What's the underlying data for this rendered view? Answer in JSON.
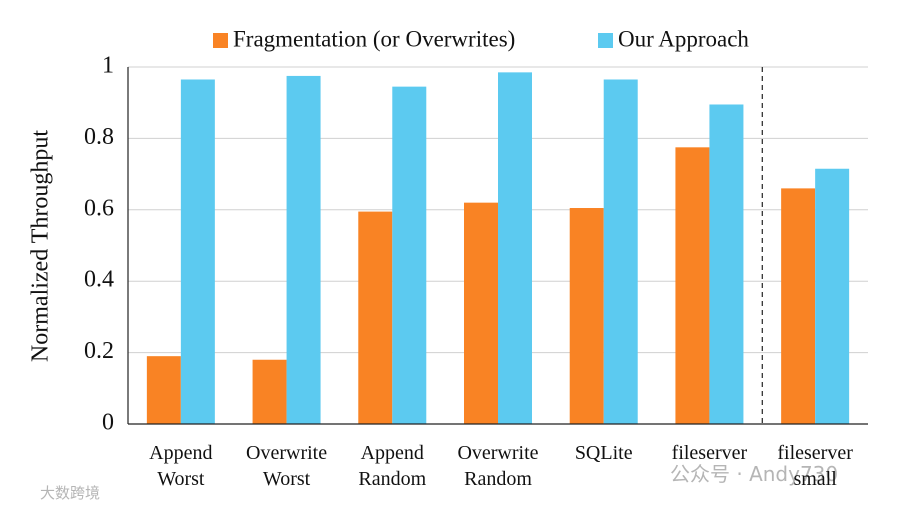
{
  "chart_data": {
    "type": "bar",
    "y_label": "Normalized Throughput",
    "categories": [
      "Append\nWorst",
      "Overwrite\nWorst",
      "Append\nRandom",
      "Overwrite\nRandom",
      "SQLite",
      "fileserver",
      "fileserver\nsmall"
    ],
    "series": [
      {
        "name": "Fragmentation (or Overwrites)",
        "color": "#f98324",
        "values": [
          0.19,
          0.18,
          0.595,
          0.62,
          0.605,
          0.775,
          0.66
        ]
      },
      {
        "name": "Our Approach",
        "color": "#5ccaf0",
        "values": [
          0.965,
          0.975,
          0.945,
          0.985,
          0.965,
          0.895,
          0.715
        ]
      }
    ],
    "ylim": [
      0,
      1
    ],
    "yticks": [
      0,
      0.2,
      0.4,
      0.6,
      0.8,
      1
    ],
    "grid": true,
    "divider_before_category": 6
  },
  "watermarks": [
    "公众号 · Andy730",
    "大数跨境"
  ]
}
